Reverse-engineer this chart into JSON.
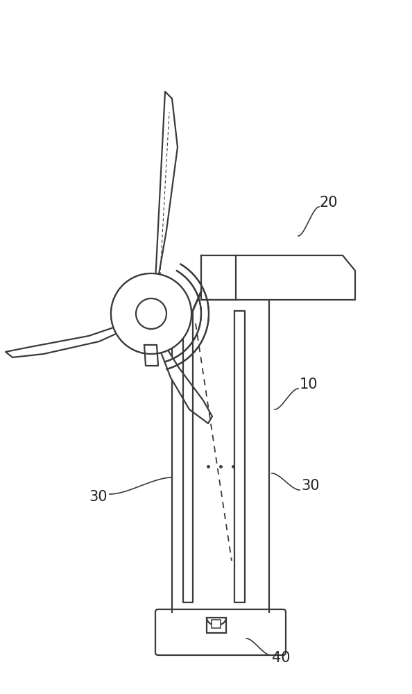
{
  "bg_color": "#ffffff",
  "line_color": "#3a3a3a",
  "line_width": 1.6,
  "label_20": "20",
  "label_10": "10",
  "label_30_left": "30",
  "label_30_right": "30",
  "label_40": "40",
  "figsize": [
    5.94,
    10.0
  ],
  "dpi": 100
}
